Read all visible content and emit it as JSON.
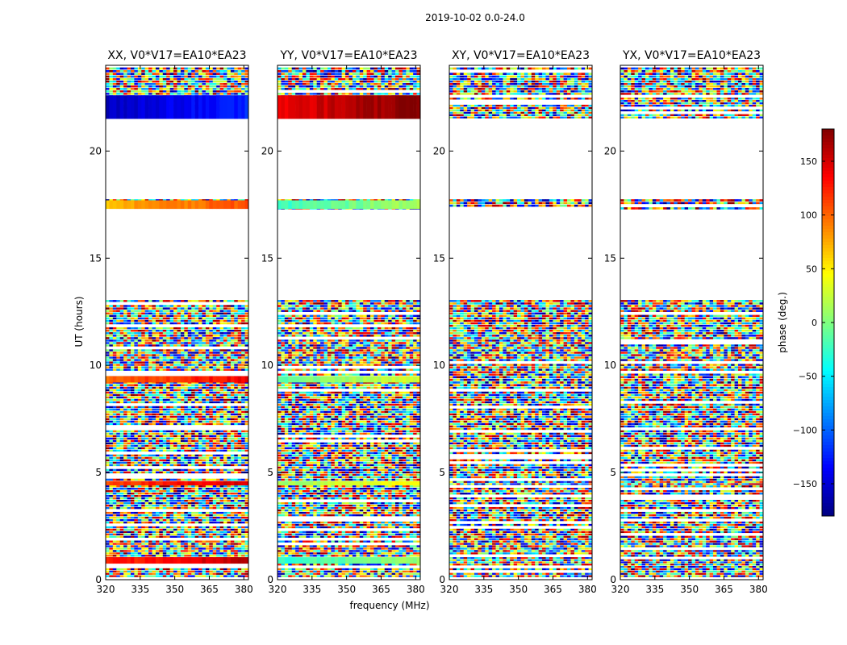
{
  "figure_title": "2019-10-02 0.0-24.0",
  "chart_data": {
    "type": "heatmap",
    "title": "2019-10-02 0.0-24.0",
    "xlabel": "frequency (MHz)",
    "ylabel": "UT (hours)",
    "xlim": [
      320,
      382
    ],
    "ylim": [
      0,
      24
    ],
    "x_ticks": [
      320,
      335,
      350,
      365,
      380
    ],
    "y_ticks": [
      0,
      5,
      10,
      15,
      20
    ],
    "colorbar": {
      "label": "phase (deg.)",
      "range": [
        -180,
        180
      ],
      "ticks": [
        -150,
        -100,
        -50,
        0,
        50,
        100,
        150
      ],
      "tick_labels": [
        "−150",
        "−100",
        "−50",
        "0",
        "50",
        "100",
        "150"
      ],
      "colormap": "jet"
    },
    "panels": [
      {
        "title": "XX, V0*V17=EA10*EA23",
        "polarization": "XX"
      },
      {
        "title": "YY, V0*V17=EA10*EA23",
        "polarization": "YY"
      },
      {
        "title": "XY, V0*V17=EA10*EA23",
        "polarization": "XY"
      },
      {
        "title": "YX, V0*V17=EA10*EA23",
        "polarization": "YX"
      }
    ],
    "data_bands_ut": [
      [
        0.1,
        0.75
      ],
      [
        0.75,
        1.05
      ],
      [
        1.05,
        2.6
      ],
      [
        2.6,
        4.4
      ],
      [
        4.4,
        4.6
      ],
      [
        4.6,
        9.0
      ],
      [
        9.0,
        9.5
      ],
      [
        9.5,
        11.2
      ],
      [
        11.2,
        12.7
      ],
      [
        12.7,
        13.05
      ],
      [
        17.25,
        17.75
      ],
      [
        21.5,
        22.6
      ],
      [
        22.6,
        23.4
      ],
      [
        23.4,
        23.9
      ]
    ],
    "coherent_bands": [
      {
        "ut": [
          0.75,
          1.05
        ],
        "phase_by_panel": [
          120,
          -30,
          null,
          null
        ]
      },
      {
        "ut": [
          4.4,
          4.6
        ],
        "phase_by_panel": [
          110,
          10,
          null,
          null
        ]
      },
      {
        "ut": [
          9.2,
          9.5
        ],
        "phase_by_panel": [
          100,
          -10,
          null,
          null
        ]
      },
      {
        "ut": [
          17.3,
          17.7
        ],
        "phase_by_panel": [
          70,
          -25,
          null,
          null
        ]
      },
      {
        "ut": [
          21.5,
          22.6
        ],
        "phase_by_panel": [
          -160,
          140,
          null,
          null
        ]
      }
    ]
  }
}
